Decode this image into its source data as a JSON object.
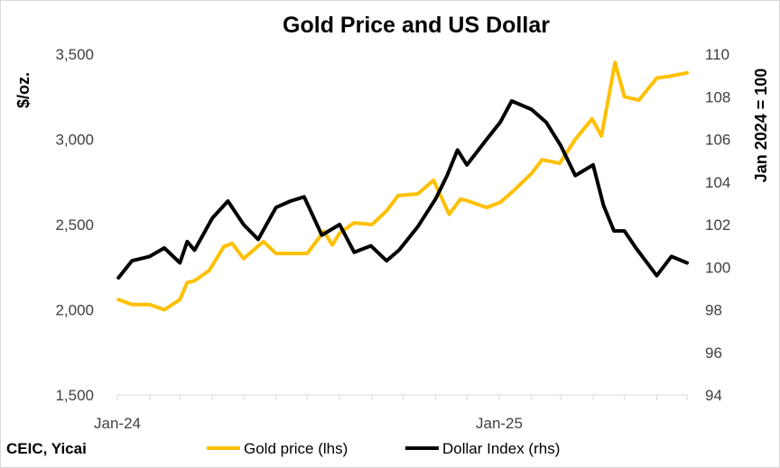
{
  "chart_data": {
    "type": "line",
    "title": "Gold Price and US Dollar",
    "ylabel_left": "$/oz.",
    "ylabel_right": "Jan 2024 = 100",
    "ylim_left": [
      1500,
      3500
    ],
    "ylim_right": [
      94,
      110
    ],
    "yticks_left": [
      "1,500",
      "2,000",
      "2,500",
      "3,000",
      "3,500"
    ],
    "yticks_right": [
      "94",
      "96",
      "98",
      "100",
      "102",
      "104",
      "106",
      "108",
      "110"
    ],
    "xticks": [
      "Jan-24",
      "Jan-25"
    ],
    "xrange": [
      "2024-01",
      "2025-06"
    ],
    "grid": false,
    "legend_position": "bottom",
    "source": "CEIC, Yicai",
    "colors": {
      "gold": "#ffc000",
      "dollar": "#000000"
    },
    "series": [
      {
        "name": "Gold price (lhs)",
        "axis": "left",
        "x": [
          "2024-01-02",
          "2024-01-15",
          "2024-02-01",
          "2024-02-15",
          "2024-03-01",
          "2024-03-08",
          "2024-03-15",
          "2024-03-29",
          "2024-04-12",
          "2024-04-20",
          "2024-05-01",
          "2024-05-20",
          "2024-06-01",
          "2024-06-20",
          "2024-07-01",
          "2024-07-17",
          "2024-07-25",
          "2024-08-01",
          "2024-08-15",
          "2024-09-01",
          "2024-09-15",
          "2024-09-26",
          "2024-10-15",
          "2024-10-30",
          "2024-11-14",
          "2024-11-25",
          "2024-12-01",
          "2024-12-20",
          "2025-01-02",
          "2025-01-15",
          "2025-02-01",
          "2025-02-11",
          "2025-02-28",
          "2025-03-15",
          "2025-03-31",
          "2025-04-09",
          "2025-04-22",
          "2025-05-01",
          "2025-05-15",
          "2025-06-01",
          "2025-06-13",
          "2025-06-30"
        ],
        "values": [
          2060,
          2030,
          2030,
          2000,
          2060,
          2160,
          2170,
          2230,
          2370,
          2390,
          2300,
          2400,
          2330,
          2330,
          2330,
          2460,
          2380,
          2450,
          2510,
          2500,
          2580,
          2670,
          2680,
          2760,
          2560,
          2650,
          2640,
          2600,
          2630,
          2700,
          2800,
          2880,
          2860,
          3000,
          3120,
          3020,
          3450,
          3250,
          3230,
          3360,
          3370,
          3390
        ]
      },
      {
        "name": "Dollar Index (rhs)",
        "axis": "right",
        "x": [
          "2024-01-02",
          "2024-01-15",
          "2024-02-01",
          "2024-02-15",
          "2024-03-01",
          "2024-03-08",
          "2024-03-15",
          "2024-04-01",
          "2024-04-16",
          "2024-05-01",
          "2024-05-15",
          "2024-06-01",
          "2024-06-15",
          "2024-06-28",
          "2024-07-15",
          "2024-08-01",
          "2024-08-15",
          "2024-08-31",
          "2024-09-15",
          "2024-09-27",
          "2024-10-15",
          "2024-11-01",
          "2024-11-12",
          "2024-11-22",
          "2024-12-01",
          "2024-12-20",
          "2025-01-02",
          "2025-01-13",
          "2025-02-01",
          "2025-02-15",
          "2025-03-01",
          "2025-03-15",
          "2025-04-01",
          "2025-04-11",
          "2025-04-21",
          "2025-05-01",
          "2025-05-12",
          "2025-06-01",
          "2025-06-15",
          "2025-06-30"
        ],
        "values": [
          99.5,
          100.3,
          100.5,
          100.9,
          100.2,
          101.2,
          100.8,
          102.3,
          103.1,
          102.0,
          101.3,
          102.8,
          103.1,
          103.3,
          101.5,
          102.0,
          100.7,
          101.0,
          100.3,
          100.8,
          101.9,
          103.2,
          104.3,
          105.5,
          104.8,
          106.0,
          106.8,
          107.8,
          107.4,
          106.8,
          105.7,
          104.3,
          104.8,
          102.9,
          101.7,
          101.7,
          100.9,
          99.6,
          100.5,
          100.2
        ]
      }
    ]
  }
}
